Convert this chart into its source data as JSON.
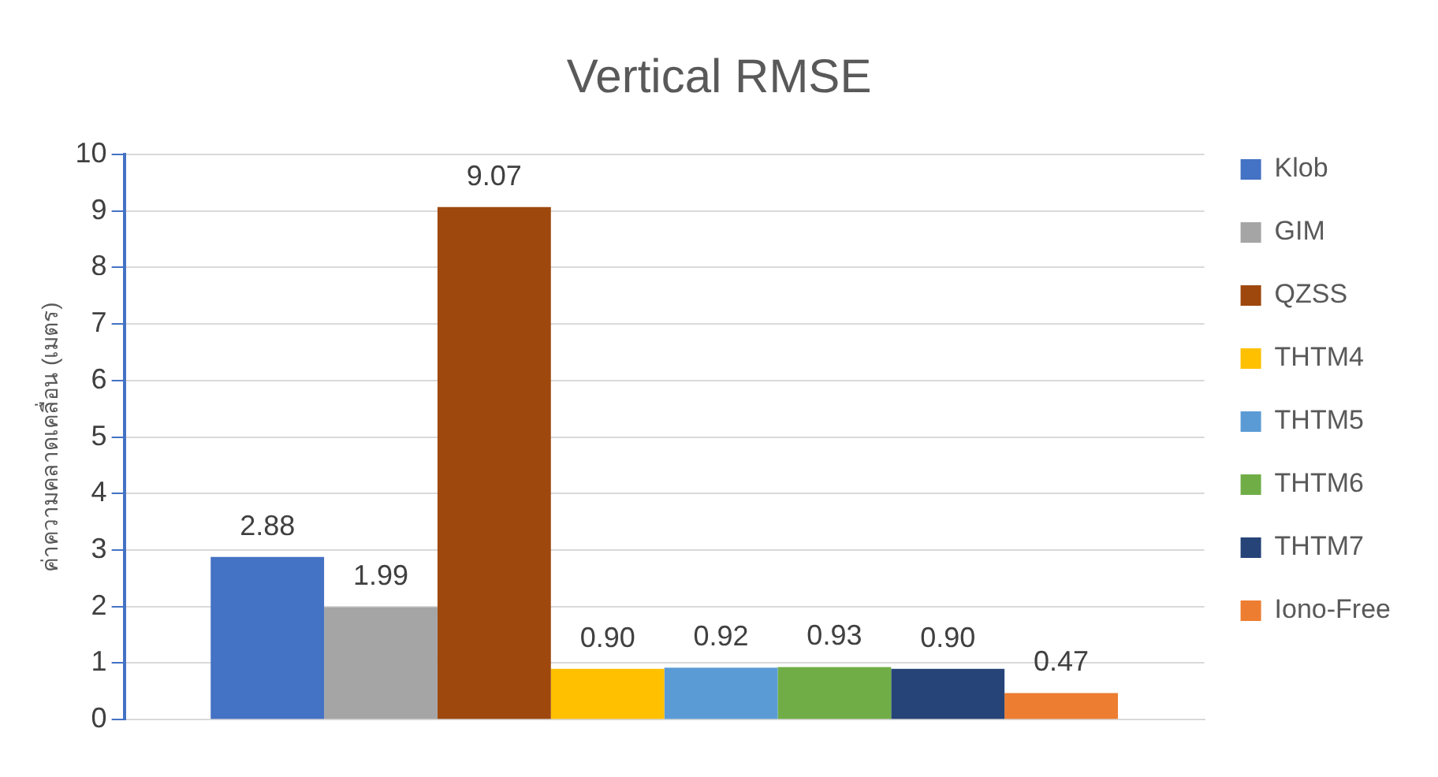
{
  "chart_data": {
    "type": "bar",
    "title": "Vertical RMSE",
    "ylabel": "ค่าความคลาดเคลื่อน (เมตร)",
    "categories": [
      null
    ],
    "series": [
      {
        "name": "Klob",
        "color": "#4472c4",
        "values": [
          2.88
        ],
        "value_labels": [
          "2.88"
        ]
      },
      {
        "name": "GIM",
        "color": "#a5a5a5",
        "values": [
          1.99
        ],
        "value_labels": [
          "1.99"
        ]
      },
      {
        "name": "QZSS",
        "color": "#9e480e",
        "values": [
          9.07
        ],
        "value_labels": [
          "9.07"
        ]
      },
      {
        "name": "THTM4",
        "color": "#ffc000",
        "values": [
          0.9
        ],
        "value_labels": [
          "0.90"
        ]
      },
      {
        "name": "THTM5",
        "color": "#5b9bd5",
        "values": [
          0.92
        ],
        "value_labels": [
          "0.92"
        ]
      },
      {
        "name": "THTM6",
        "color": "#70ad47",
        "values": [
          0.93
        ],
        "value_labels": [
          "0.93"
        ]
      },
      {
        "name": "THTM7",
        "color": "#264478",
        "values": [
          0.9
        ],
        "value_labels": [
          "0.90"
        ]
      },
      {
        "name": "Iono-Free",
        "color": "#ed7d31",
        "values": [
          0.47
        ],
        "value_labels": [
          "0.47"
        ]
      }
    ],
    "ylim": [
      0,
      10
    ],
    "yticks": [
      0,
      1,
      2,
      3,
      4,
      5,
      6,
      7,
      8,
      9,
      10
    ],
    "grid": "y",
    "legend": "right"
  }
}
